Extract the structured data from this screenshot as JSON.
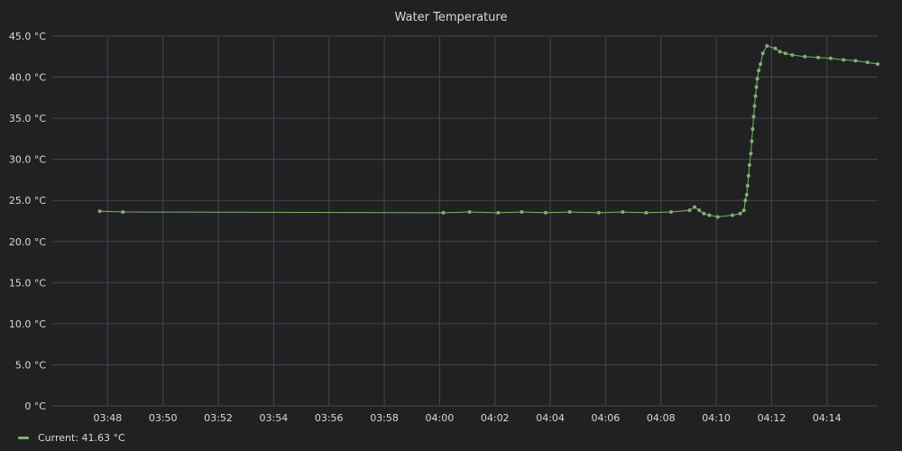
{
  "chart_data": {
    "type": "line",
    "title": "Water Temperature",
    "xlabel": "",
    "ylabel": "",
    "x_unit": "time (HH:MM)",
    "xlim": [
      "03:46:00",
      "04:15:50"
    ],
    "ylim": [
      0,
      45
    ],
    "grid": true,
    "legend_position": "bottom-left",
    "y_ticks": [
      "0 °C",
      "5.0 °C",
      "10.0 °C",
      "15.0 °C",
      "20.0 °C",
      "25.0 °C",
      "30.0 °C",
      "35.0 °C",
      "40.0 °C",
      "45.0 °C"
    ],
    "x_ticks": [
      "03:48",
      "03:50",
      "03:52",
      "03:54",
      "03:56",
      "03:58",
      "04:00",
      "04:02",
      "04:04",
      "04:06",
      "04:08",
      "04:10",
      "04:12",
      "04:14"
    ],
    "series": [
      {
        "name": "Current",
        "color": "#7eb26d",
        "legend_text": "Current: 41.63 °C",
        "points": [
          [
            "03:47:43",
            23.7
          ],
          [
            "03:48:33",
            23.6
          ],
          [
            "04:00:08",
            23.5
          ],
          [
            "04:01:05",
            23.6
          ],
          [
            "04:02:07",
            23.5
          ],
          [
            "04:02:58",
            23.6
          ],
          [
            "04:03:50",
            23.5
          ],
          [
            "04:04:42",
            23.6
          ],
          [
            "04:05:45",
            23.5
          ],
          [
            "04:06:37",
            23.6
          ],
          [
            "04:07:28",
            23.5
          ],
          [
            "04:08:22",
            23.6
          ],
          [
            "04:09:02",
            23.8
          ],
          [
            "04:09:13",
            24.2
          ],
          [
            "04:09:23",
            23.8
          ],
          [
            "04:09:33",
            23.4
          ],
          [
            "04:09:45",
            23.2
          ],
          [
            "04:10:03",
            23.0
          ],
          [
            "04:10:35",
            23.2
          ],
          [
            "04:10:52",
            23.4
          ],
          [
            "04:11:00",
            23.8
          ],
          [
            "04:11:03",
            25.0
          ],
          [
            "04:11:06",
            25.7
          ],
          [
            "04:11:08",
            26.8
          ],
          [
            "04:11:10",
            28.0
          ],
          [
            "04:11:12",
            29.3
          ],
          [
            "04:11:15",
            30.7
          ],
          [
            "04:11:17",
            32.2
          ],
          [
            "04:11:19",
            33.7
          ],
          [
            "04:11:21",
            35.2
          ],
          [
            "04:11:23",
            36.5
          ],
          [
            "04:11:25",
            37.7
          ],
          [
            "04:11:27",
            38.8
          ],
          [
            "04:11:29",
            39.8
          ],
          [
            "04:11:32",
            40.8
          ],
          [
            "04:11:36",
            41.6
          ],
          [
            "04:11:41",
            42.9
          ],
          [
            "04:11:50",
            43.8
          ],
          [
            "04:12:08",
            43.5
          ],
          [
            "04:12:18",
            43.1
          ],
          [
            "04:12:30",
            42.9
          ],
          [
            "04:12:45",
            42.7
          ],
          [
            "04:13:12",
            42.5
          ],
          [
            "04:13:41",
            42.4
          ],
          [
            "04:14:08",
            42.3
          ],
          [
            "04:14:36",
            42.1
          ],
          [
            "04:15:02",
            42.0
          ],
          [
            "04:15:28",
            41.8
          ],
          [
            "04:15:50",
            41.6
          ]
        ]
      }
    ]
  }
}
